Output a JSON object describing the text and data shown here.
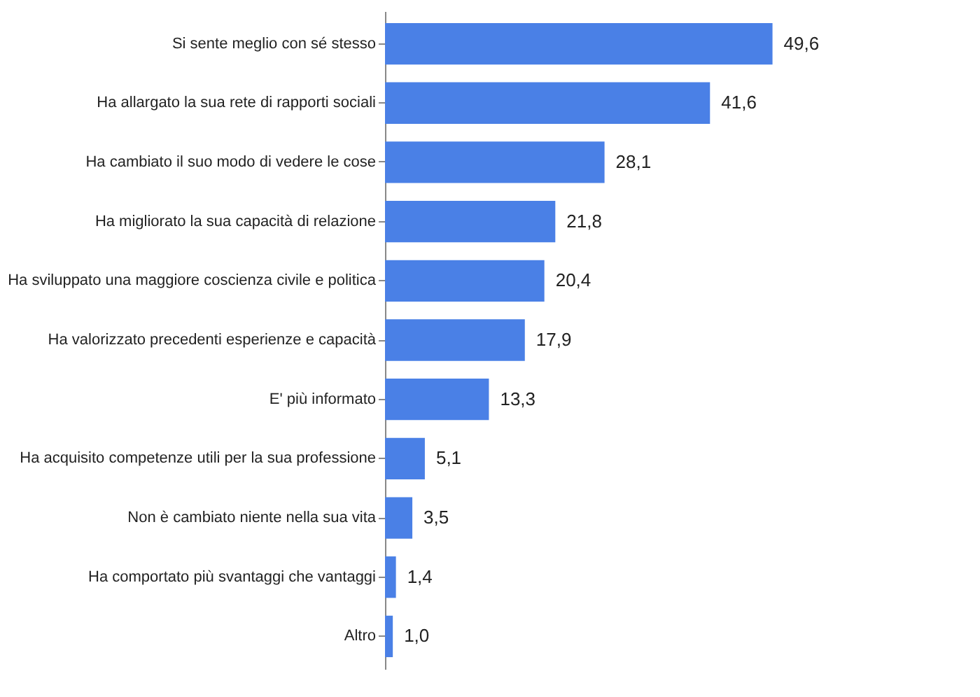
{
  "chart_data": {
    "type": "bar",
    "orientation": "horizontal",
    "categories": [
      "Si sente meglio con sé stesso",
      "Ha allargato la sua rete di rapporti sociali",
      "Ha cambiato il suo modo di vedere le cose",
      "Ha migliorato la sua capacità di relazione",
      "Ha sviluppato una maggiore coscienza civile e politica",
      "Ha valorizzato precedenti esperienze e capacità",
      "E' più informato",
      "Ha acquisito competenze utili per la sua professione",
      "Non è cambiato niente nella sua vita",
      "Ha comportato più svantaggi che vantaggi",
      "Altro"
    ],
    "values": [
      49.6,
      41.6,
      28.1,
      21.8,
      20.4,
      17.9,
      13.3,
      5.1,
      3.5,
      1.4,
      1.0
    ],
    "value_labels": [
      "49,6",
      "41,6",
      "28,1",
      "21,8",
      "20,4",
      "17,9",
      "13,3",
      "5,1",
      "3,5",
      "1,4",
      "1,0"
    ],
    "color": "#4a80e6"
  }
}
